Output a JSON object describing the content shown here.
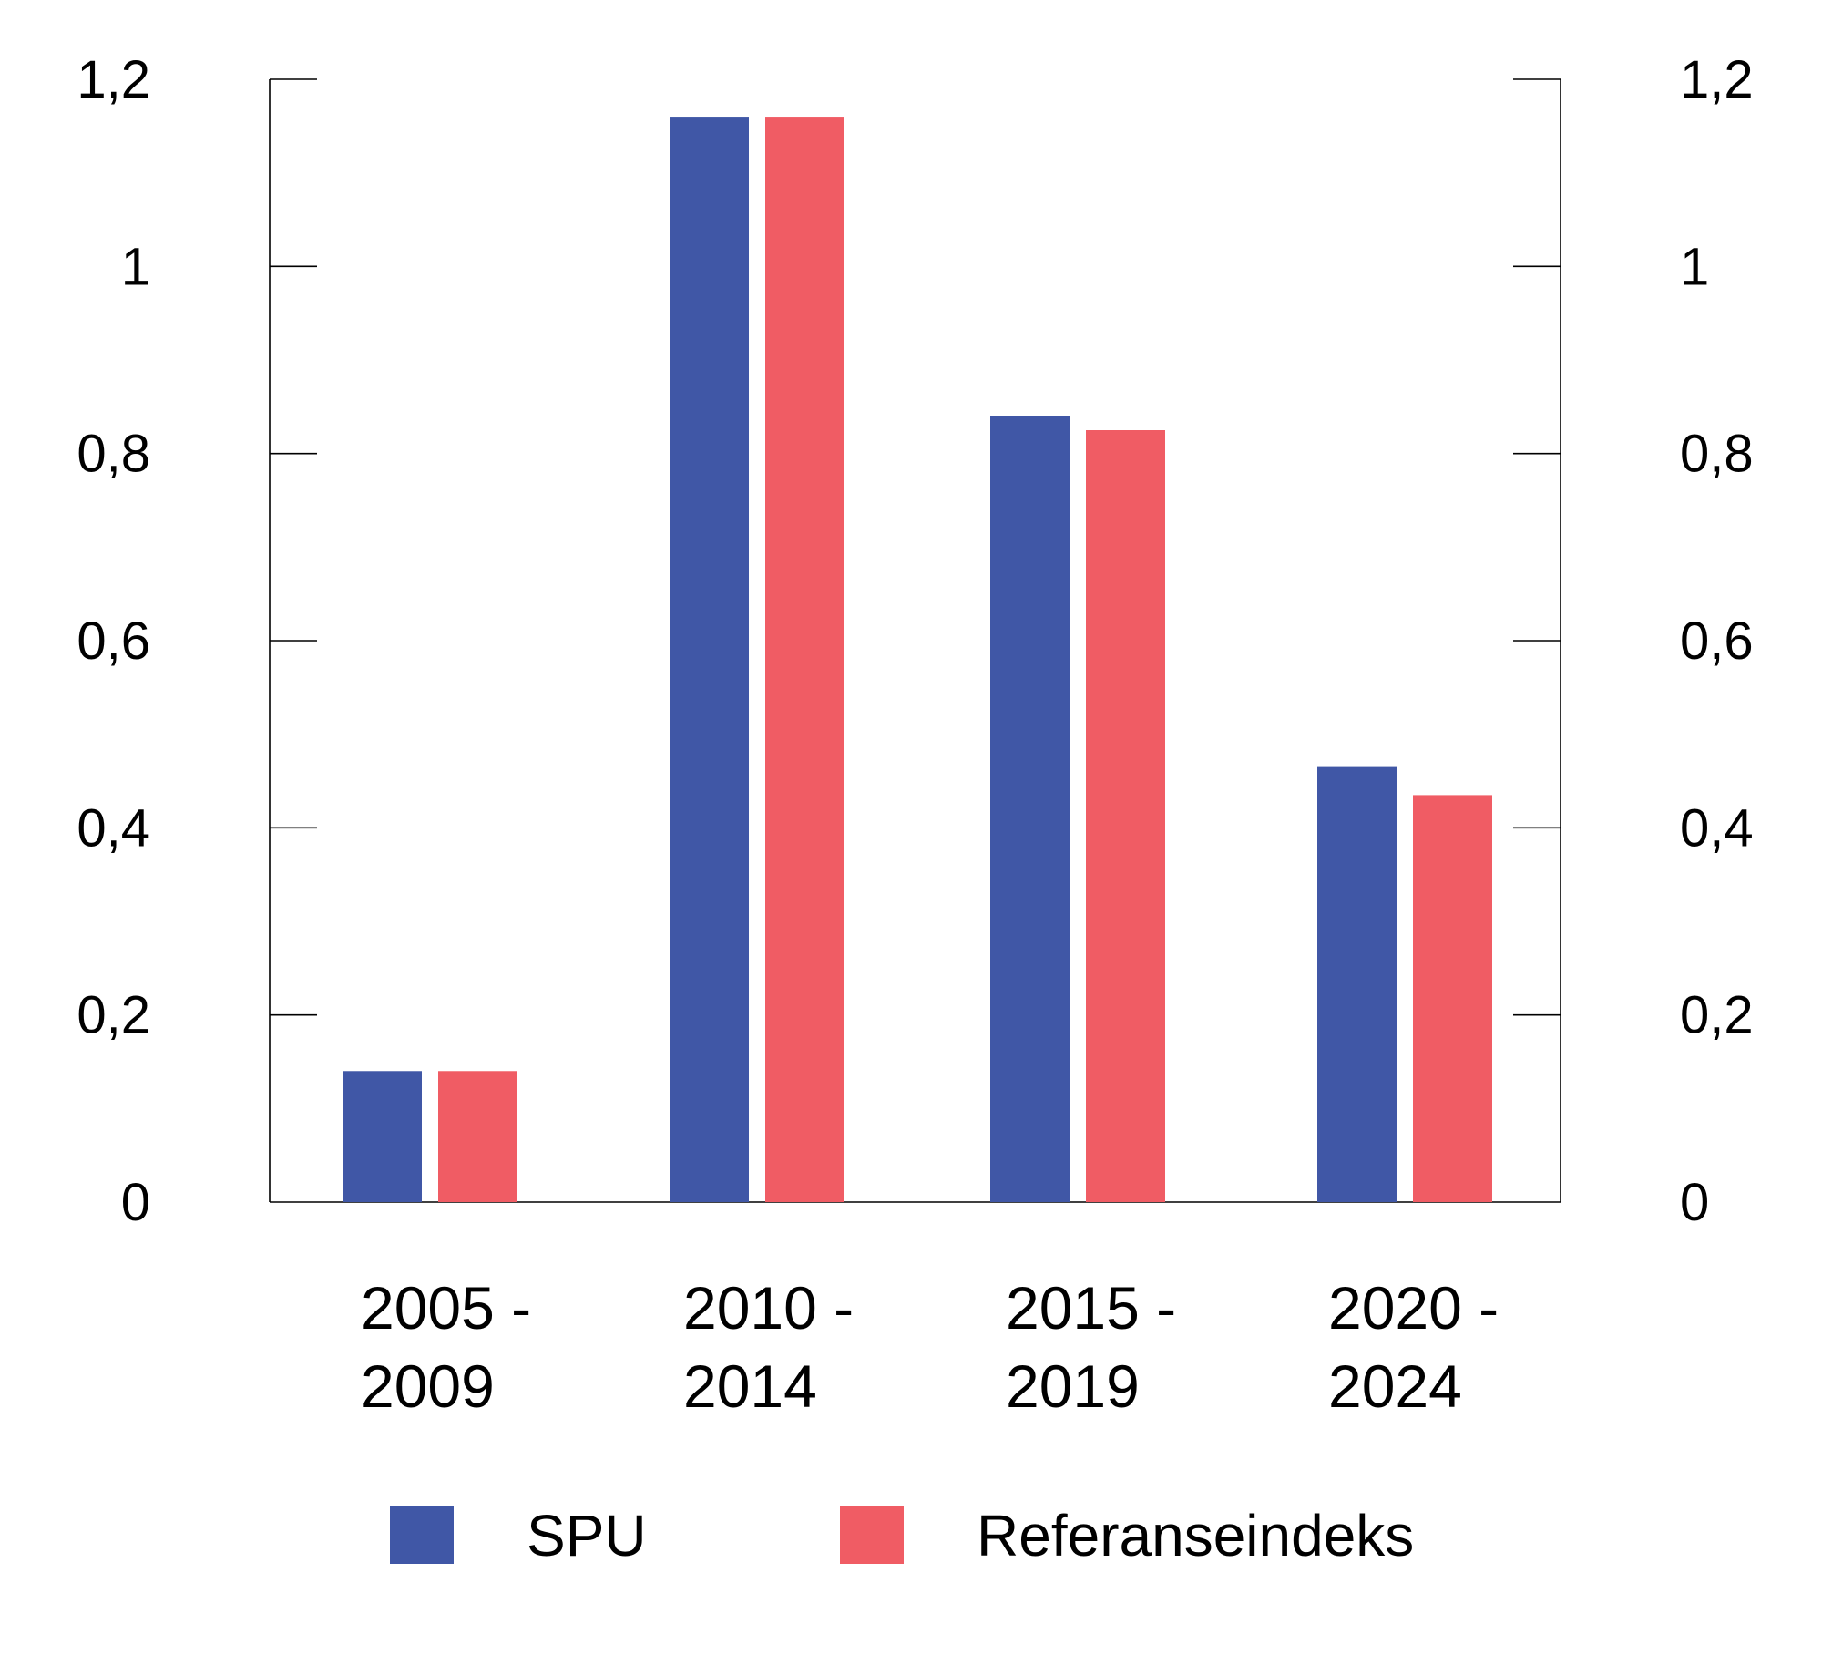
{
  "chart_data": {
    "type": "bar",
    "title": "",
    "xlabel": "",
    "ylabel": "",
    "categories": [
      [
        "2005 -",
        "2009"
      ],
      [
        "2010 -",
        "2014"
      ],
      [
        "2015 -",
        "2019"
      ],
      [
        "2020 -",
        "2024"
      ]
    ],
    "series": [
      {
        "name": "SPU",
        "color": "#4057a6",
        "values": [
          0.14,
          1.16,
          0.84,
          0.465
        ]
      },
      {
        "name": "Referanseindeks",
        "color": "#f05c64",
        "values": [
          0.14,
          1.16,
          0.825,
          0.435
        ]
      }
    ],
    "ylim": [
      0,
      1.2
    ],
    "yticks": [
      "0",
      "0,2",
      "0,4",
      "0,6",
      "0,8",
      "1",
      "1,2"
    ],
    "ytick_values": [
      0,
      0.2,
      0.4,
      0.6,
      0.8,
      1.0,
      1.2
    ],
    "secondary_y_axis": true,
    "grid": false,
    "legend_position": "bottom"
  }
}
